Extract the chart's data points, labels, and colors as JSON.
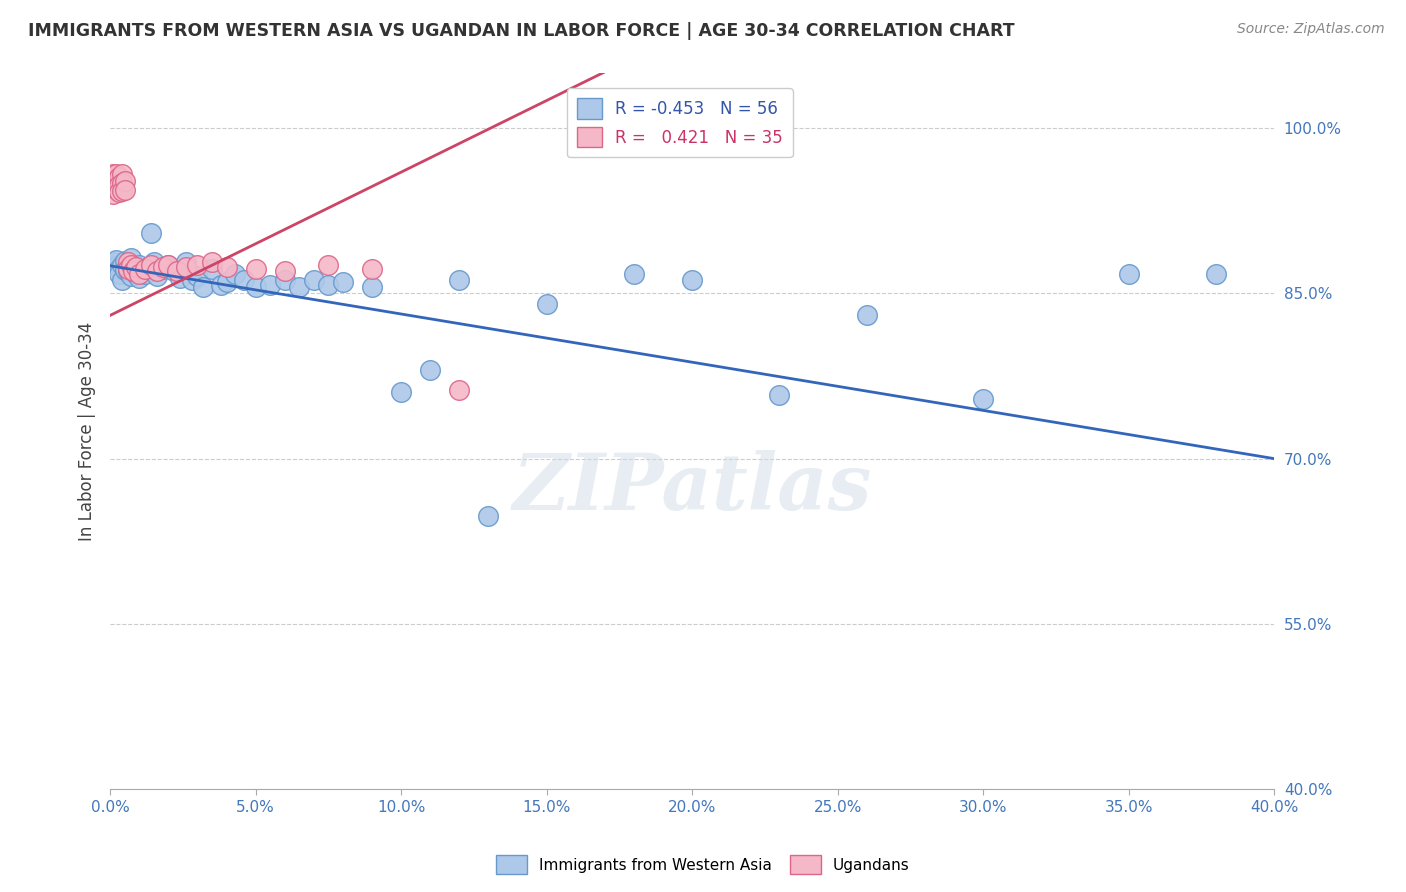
{
  "title": "IMMIGRANTS FROM WESTERN ASIA VS UGANDAN IN LABOR FORCE | AGE 30-34 CORRELATION CHART",
  "source": "Source: ZipAtlas.com",
  "ylabel": "In Labor Force | Age 30-34",
  "xlim": [
    0.0,
    0.4
  ],
  "ylim": [
    0.4,
    1.05
  ],
  "xticks": [
    0.0,
    0.05,
    0.1,
    0.15,
    0.2,
    0.25,
    0.3,
    0.35,
    0.4
  ],
  "ytick_labels": [
    "40.0%",
    "55.0%",
    "70.0%",
    "85.0%",
    "100.0%"
  ],
  "ytick_values": [
    0.4,
    0.55,
    0.7,
    0.85,
    1.0
  ],
  "blue_R": -0.453,
  "blue_N": 56,
  "pink_R": 0.421,
  "pink_N": 35,
  "blue_color": "#adc8e8",
  "blue_edge": "#6699cc",
  "pink_color": "#f5b8c8",
  "pink_edge": "#dd6688",
  "blue_line_color": "#3366bb",
  "pink_line_color": "#cc4466",
  "watermark": "ZIPatlas",
  "blue_x": [
    0.001,
    0.002,
    0.002,
    0.003,
    0.003,
    0.004,
    0.004,
    0.005,
    0.005,
    0.006,
    0.006,
    0.007,
    0.007,
    0.008,
    0.009,
    0.01,
    0.01,
    0.011,
    0.012,
    0.013,
    0.014,
    0.015,
    0.016,
    0.018,
    0.02,
    0.022,
    0.024,
    0.026,
    0.028,
    0.03,
    0.032,
    0.035,
    0.038,
    0.04,
    0.043,
    0.046,
    0.05,
    0.055,
    0.06,
    0.065,
    0.07,
    0.075,
    0.08,
    0.09,
    0.1,
    0.11,
    0.12,
    0.13,
    0.15,
    0.18,
    0.2,
    0.23,
    0.26,
    0.3,
    0.35,
    0.38
  ],
  "blue_y": [
    0.878,
    0.875,
    0.88,
    0.872,
    0.868,
    0.876,
    0.862,
    0.879,
    0.871,
    0.874,
    0.87,
    0.882,
    0.866,
    0.873,
    0.868,
    0.876,
    0.864,
    0.87,
    0.868,
    0.874,
    0.905,
    0.878,
    0.866,
    0.872,
    0.876,
    0.87,
    0.864,
    0.878,
    0.862,
    0.866,
    0.856,
    0.872,
    0.858,
    0.86,
    0.868,
    0.862,
    0.856,
    0.858,
    0.862,
    0.856,
    0.862,
    0.858,
    0.86,
    0.856,
    0.76,
    0.78,
    0.862,
    0.648,
    0.84,
    0.868,
    0.862,
    0.758,
    0.83,
    0.754,
    0.868,
    0.868
  ],
  "pink_x": [
    0.001,
    0.001,
    0.001,
    0.002,
    0.002,
    0.002,
    0.003,
    0.003,
    0.003,
    0.004,
    0.004,
    0.004,
    0.005,
    0.005,
    0.006,
    0.006,
    0.007,
    0.008,
    0.009,
    0.01,
    0.012,
    0.014,
    0.016,
    0.018,
    0.02,
    0.023,
    0.026,
    0.03,
    0.035,
    0.04,
    0.05,
    0.06,
    0.075,
    0.09,
    0.12
  ],
  "pink_y": [
    0.958,
    0.948,
    0.94,
    0.958,
    0.952,
    0.945,
    0.956,
    0.948,
    0.942,
    0.958,
    0.95,
    0.943,
    0.952,
    0.944,
    0.878,
    0.872,
    0.876,
    0.87,
    0.874,
    0.868,
    0.872,
    0.876,
    0.87,
    0.874,
    0.876,
    0.87,
    0.874,
    0.876,
    0.878,
    0.874,
    0.872,
    0.87,
    0.876,
    0.872,
    0.762
  ]
}
